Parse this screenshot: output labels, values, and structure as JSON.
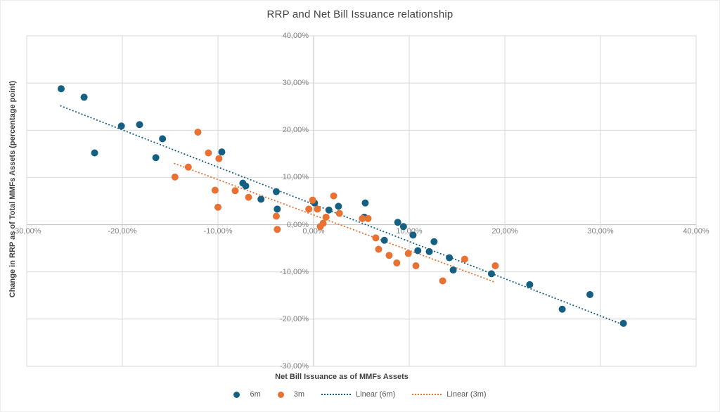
{
  "title": "RRP and Net Bill Issuance relationship",
  "colors": {
    "series_6m": "#156082",
    "series_3m": "#E97132",
    "gridline": "#D9D9D9",
    "plot_border": "#D9D9D9",
    "axis_line": "#BFBFBF",
    "tick_label": "#7F7F7F",
    "title_text": "#404040",
    "legend_text": "#595959"
  },
  "chart_data": {
    "type": "scatter",
    "title": "RRP and Net Bill Issuance relationship",
    "xlabel": "Net Bill Issuance as of MMFs Assets",
    "ylabel": "Change in RRP as of Total MMFs Assets (percentage point)",
    "xlim": [
      -30,
      40
    ],
    "ylim": [
      -30,
      40
    ],
    "tick_step": 10,
    "grid": true,
    "legend_position": "bottom",
    "x_tick_labels": [
      "-30,00%",
      "-20,00%",
      "-10,00%",
      "0,00%",
      "10,00%",
      "20,00%",
      "30,00%",
      "40,00%"
    ],
    "y_tick_labels": [
      "-30,00%",
      "-20,00%",
      "-10,00%",
      "0,00%",
      "10,00%",
      "20,00%",
      "30,00%",
      "40,00%"
    ],
    "units": "percent",
    "series": [
      {
        "name": "6m",
        "color": "#156082",
        "points": [
          [
            -26.4,
            28.8
          ],
          [
            -24.0,
            27.0
          ],
          [
            -22.9,
            15.2
          ],
          [
            -20.1,
            20.9
          ],
          [
            -18.2,
            21.2
          ],
          [
            -16.5,
            14.2
          ],
          [
            -15.8,
            18.2
          ],
          [
            -9.6,
            15.4
          ],
          [
            -7.4,
            8.8
          ],
          [
            -7.1,
            8.2
          ],
          [
            -5.5,
            5.4
          ],
          [
            -3.9,
            7.0
          ],
          [
            -3.8,
            3.3
          ],
          [
            0.1,
            4.6
          ],
          [
            1.6,
            3.1
          ],
          [
            2.6,
            3.9
          ],
          [
            5.4,
            4.6
          ],
          [
            5.3,
            1.6
          ],
          [
            7.4,
            -3.3
          ],
          [
            8.8,
            0.5
          ],
          [
            9.4,
            -0.4
          ],
          [
            10.4,
            -2.2
          ],
          [
            10.9,
            -5.5
          ],
          [
            12.1,
            -5.7
          ],
          [
            12.6,
            -3.6
          ],
          [
            14.2,
            -7.0
          ],
          [
            14.6,
            -9.6
          ],
          [
            18.6,
            -10.4
          ],
          [
            22.6,
            -12.7
          ],
          [
            26.0,
            -17.9
          ],
          [
            28.9,
            -14.8
          ],
          [
            32.4,
            -20.9
          ]
        ]
      },
      {
        "name": "3m",
        "color": "#E97132",
        "points": [
          [
            -14.5,
            10.1
          ],
          [
            -13.1,
            12.2
          ],
          [
            -12.1,
            19.6
          ],
          [
            -11.0,
            15.2
          ],
          [
            -10.3,
            7.3
          ],
          [
            -10.0,
            3.7
          ],
          [
            -9.9,
            14.0
          ],
          [
            -8.2,
            7.2
          ],
          [
            -6.8,
            5.8
          ],
          [
            -3.9,
            1.8
          ],
          [
            -3.8,
            -1.0
          ],
          [
            -0.5,
            3.3
          ],
          [
            -0.1,
            5.2
          ],
          [
            0.4,
            3.3
          ],
          [
            0.7,
            -0.4
          ],
          [
            1.0,
            0.3
          ],
          [
            1.3,
            1.6
          ],
          [
            2.1,
            6.1
          ],
          [
            2.7,
            2.4
          ],
          [
            5.1,
            1.3
          ],
          [
            5.7,
            1.3
          ],
          [
            6.5,
            -2.8
          ],
          [
            6.8,
            -5.2
          ],
          [
            7.9,
            -6.5
          ],
          [
            8.7,
            -8.1
          ],
          [
            9.9,
            -6.1
          ],
          [
            10.7,
            -8.7
          ],
          [
            13.5,
            -11.9
          ],
          [
            15.8,
            -7.3
          ],
          [
            19.0,
            -8.7
          ]
        ]
      }
    ],
    "trendlines": [
      {
        "name": "Linear (6m)",
        "color": "#156082",
        "x1": -26.5,
        "y1": 25.2,
        "x2": 32.0,
        "y2": -20.9
      },
      {
        "name": "Linear (3m)",
        "color": "#E97132",
        "x1": -14.6,
        "y1": 13.0,
        "x2": 19.0,
        "y2": -12.2
      }
    ],
    "legend_items": [
      {
        "label": "6m",
        "type": "dot",
        "color": "#156082"
      },
      {
        "label": "3m",
        "type": "dot",
        "color": "#E97132"
      },
      {
        "label": "Linear (6m)",
        "type": "line",
        "color": "#156082"
      },
      {
        "label": "Linear (3m)",
        "type": "line",
        "color": "#E97132"
      }
    ]
  }
}
